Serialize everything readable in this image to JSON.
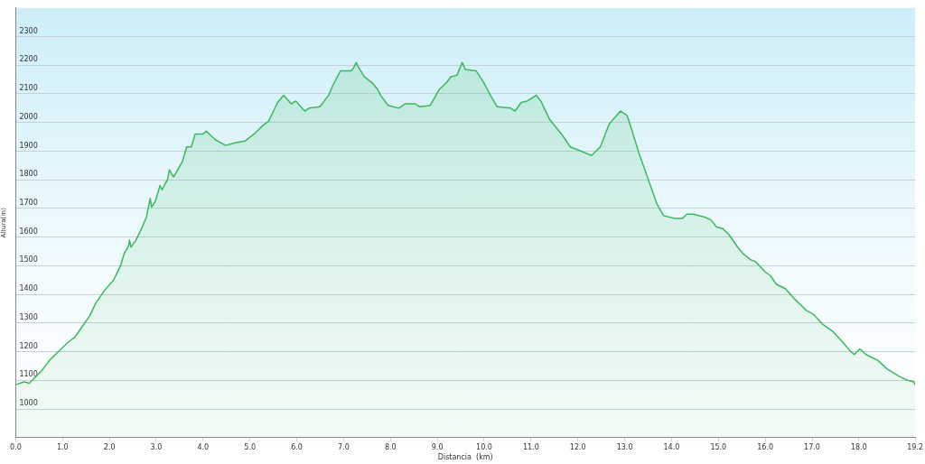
{
  "chart_data": {
    "type": "area",
    "xlabel": "Distancia  (km)",
    "ylabel": "Altura(m)",
    "x": [
      0,
      0.18,
      0.29,
      0.56,
      0.72,
      0.94,
      1.13,
      1.26,
      1.45,
      1.58,
      1.71,
      1.9,
      2.09,
      2.25,
      2.31,
      2.41,
      2.43,
      2.46,
      2.57,
      2.7,
      2.79,
      2.87,
      2.9,
      2.98,
      3.08,
      3.12,
      3.24,
      3.28,
      3.37,
      3.56,
      3.65,
      3.75,
      3.83,
      4,
      4.07,
      4.26,
      4.48,
      4.7,
      4.89,
      5.09,
      5.28,
      5.4,
      5.59,
      5.72,
      5.88,
      5.98,
      6.17,
      6.26,
      6.49,
      6.68,
      6.77,
      6.93,
      7.16,
      7.21,
      7.27,
      7.31,
      7.44,
      7.6,
      7.73,
      7.79,
      7.95,
      8.18,
      8.31,
      8.53,
      8.62,
      8.85,
      9.04,
      9.2,
      9.29,
      9.42,
      9.53,
      9.6,
      9.83,
      9.99,
      10.15,
      10.28,
      10.57,
      10.66,
      10.79,
      10.92,
      11.11,
      11.21,
      11.4,
      11.65,
      11.84,
      12.07,
      12.29,
      12.48,
      12.67,
      12.91,
      13.05,
      13.15,
      13.31,
      13.43,
      13.56,
      13.69,
      13.83,
      14.07,
      14.23,
      14.33,
      14.46,
      14.71,
      14.84,
      14.96,
      15.09,
      15.22,
      15.41,
      15.54,
      15.7,
      15.79,
      15.99,
      16.11,
      16.24,
      16.43,
      16.62,
      16.87,
      17.03,
      17.23,
      17.45,
      17.67,
      17.8,
      17.9,
      18.02,
      18.15,
      18.4,
      18.6,
      18.85,
      19.04,
      19.17,
      19.2
    ],
    "series": [
      {
        "color": "#3cb95a",
        "values": [
          1085,
          1095,
          1090,
          1135,
          1170,
          1205,
          1235,
          1250,
          1295,
          1325,
          1370,
          1415,
          1450,
          1505,
          1540,
          1570,
          1590,
          1565,
          1590,
          1635,
          1670,
          1735,
          1705,
          1725,
          1780,
          1765,
          1800,
          1835,
          1810,
          1865,
          1915,
          1915,
          1960,
          1960,
          1970,
          1940,
          1920,
          1930,
          1935,
          1960,
          1990,
          2005,
          2070,
          2095,
          2065,
          2075,
          2040,
          2050,
          2055,
          2095,
          2130,
          2180,
          2180,
          2190,
          2210,
          2195,
          2160,
          2140,
          2115,
          2095,
          2060,
          2050,
          2065,
          2065,
          2055,
          2060,
          2115,
          2140,
          2160,
          2165,
          2210,
          2185,
          2180,
          2140,
          2090,
          2055,
          2050,
          2040,
          2070,
          2075,
          2095,
          2075,
          2010,
          1960,
          1915,
          1900,
          1885,
          1915,
          1995,
          2040,
          2025,
          1975,
          1890,
          1835,
          1775,
          1715,
          1675,
          1665,
          1665,
          1680,
          1680,
          1670,
          1660,
          1635,
          1630,
          1610,
          1565,
          1540,
          1520,
          1515,
          1480,
          1465,
          1435,
          1420,
          1385,
          1345,
          1330,
          1295,
          1270,
          1230,
          1205,
          1190,
          1210,
          1190,
          1170,
          1140,
          1115,
          1100,
          1095,
          1085
        ]
      }
    ],
    "xlim": [
      0,
      19.2
    ],
    "xticks": [
      {
        "value": 0,
        "label": "0.0"
      },
      {
        "value": 1,
        "label": "1.0"
      },
      {
        "value": 2,
        "label": "2.0"
      },
      {
        "value": 3,
        "label": "3.0"
      },
      {
        "value": 4,
        "label": "4.0"
      },
      {
        "value": 5,
        "label": "5.0"
      },
      {
        "value": 6,
        "label": "6.0"
      },
      {
        "value": 7,
        "label": "7.0"
      },
      {
        "value": 8,
        "label": "8.0"
      },
      {
        "value": 9,
        "label": "9.0"
      },
      {
        "value": 10,
        "label": "10.0"
      },
      {
        "value": 11,
        "label": "11.0"
      },
      {
        "value": 12,
        "label": "12.0"
      },
      {
        "value": 13,
        "label": "13.0"
      },
      {
        "value": 14,
        "label": "14.0"
      },
      {
        "value": 15,
        "label": "15.0"
      },
      {
        "value": 16,
        "label": "16.0"
      },
      {
        "value": 17,
        "label": "17.0"
      },
      {
        "value": 18,
        "label": "18.0"
      },
      {
        "value": 19.2,
        "label": "19.2"
      }
    ],
    "ylim": [
      900,
      2400
    ],
    "yticks": [
      1000,
      1100,
      1200,
      1300,
      1400,
      1500,
      1600,
      1700,
      1800,
      1900,
      2000,
      2100,
      2200,
      2300
    ],
    "grid": "y"
  }
}
